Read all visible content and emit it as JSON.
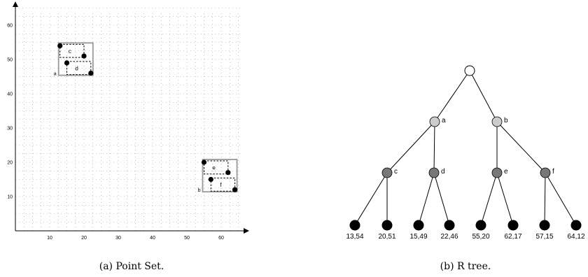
{
  "point_set": {
    "caption": "(a) Point Set.",
    "x_ticks": [
      "10",
      "20",
      "30",
      "40",
      "50",
      "60"
    ],
    "y_ticks": [
      "10",
      "20",
      "30",
      "40",
      "50",
      "60"
    ],
    "groups": [
      {
        "label": "a",
        "children": [
          {
            "label": "c",
            "points": [
              [
                13,
                54
              ],
              [
                20,
                51
              ]
            ]
          },
          {
            "label": "d",
            "points": [
              [
                15,
                49
              ],
              [
                22,
                46
              ]
            ]
          }
        ]
      },
      {
        "label": "b",
        "children": [
          {
            "label": "e",
            "points": [
              [
                55,
                20
              ],
              [
                62,
                17
              ]
            ]
          },
          {
            "label": "f",
            "points": [
              [
                57,
                15
              ],
              [
                64,
                12
              ]
            ]
          }
        ]
      }
    ]
  },
  "rtree": {
    "caption": "(b) R tree.",
    "level1": [
      "a",
      "b"
    ],
    "level2": [
      "c",
      "d",
      "e",
      "f"
    ],
    "leaves": [
      "13,54",
      "20,51",
      "15,49",
      "22,46",
      "55,20",
      "62,17",
      "57,15",
      "64,12"
    ]
  },
  "colors": {
    "root_fill": "#ffffff",
    "level1_fill": "#cccccc",
    "level2_fill": "#777777",
    "leaf_fill": "#000000",
    "outer_mbr": "#999999",
    "grid": "#999999"
  }
}
